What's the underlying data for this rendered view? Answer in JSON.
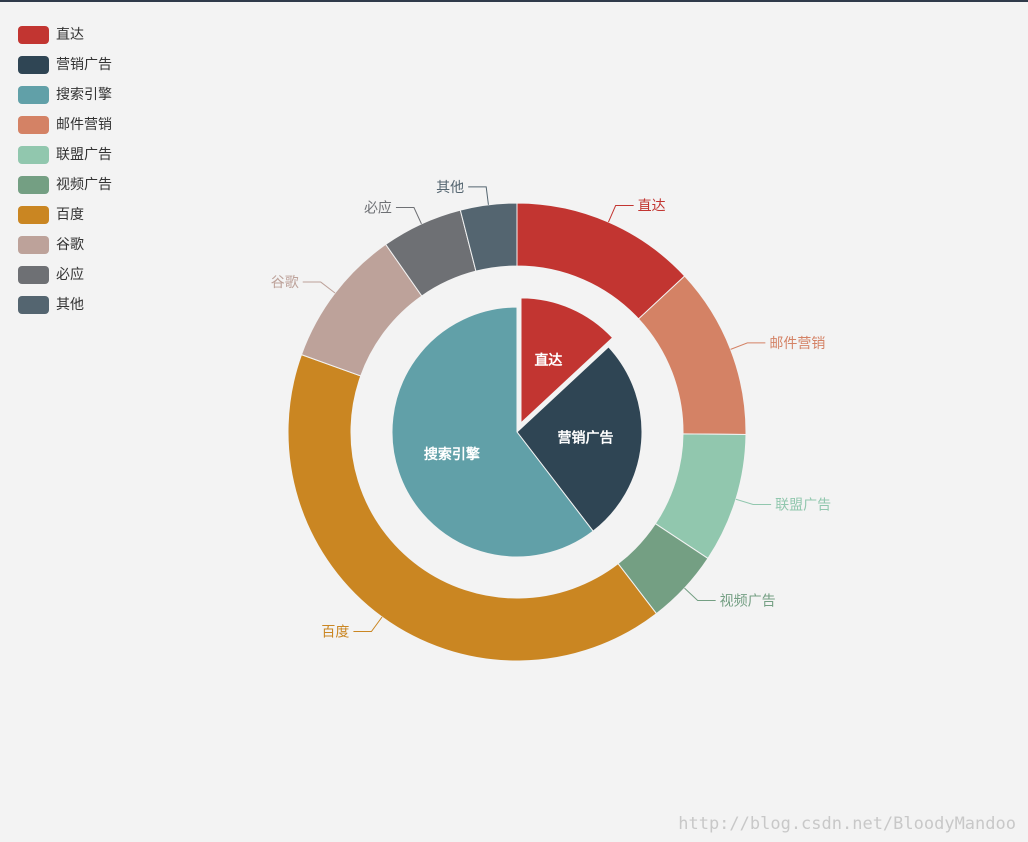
{
  "chart_data": {
    "type": "pie",
    "legend_position": "top-left",
    "legend": [
      "直达",
      "营销广告",
      "搜索引擎",
      "邮件营销",
      "联盟广告",
      "视频广告",
      "百度",
      "谷歌",
      "必应",
      "其他"
    ],
    "colors": {
      "直达": "#c23531",
      "营销广告": "#2f4554",
      "搜索引擎": "#61a0a8",
      "邮件营销": "#d48265",
      "联盟广告": "#91c7ae",
      "视频广告": "#749f83",
      "百度": "#ca8622",
      "谷歌": "#bda29a",
      "必应": "#6e7074",
      "其他": "#546570"
    },
    "inner_series": {
      "slices": [
        {
          "name": "直达",
          "value": 335,
          "selected": true
        },
        {
          "name": "营销广告",
          "value": 679
        },
        {
          "name": "搜索引擎",
          "value": 1548
        }
      ]
    },
    "outer_series": {
      "slices": [
        {
          "name": "直达",
          "value": 335
        },
        {
          "name": "邮件营销",
          "value": 310
        },
        {
          "name": "联盟广告",
          "value": 234
        },
        {
          "name": "视频广告",
          "value": 135
        },
        {
          "name": "百度",
          "value": 1048
        },
        {
          "name": "谷歌",
          "value": 251
        },
        {
          "name": "必应",
          "value": 147
        },
        {
          "name": "其他",
          "value": 102
        }
      ]
    }
  },
  "watermark": "http://blog.csdn.net/BloodyMandoo"
}
